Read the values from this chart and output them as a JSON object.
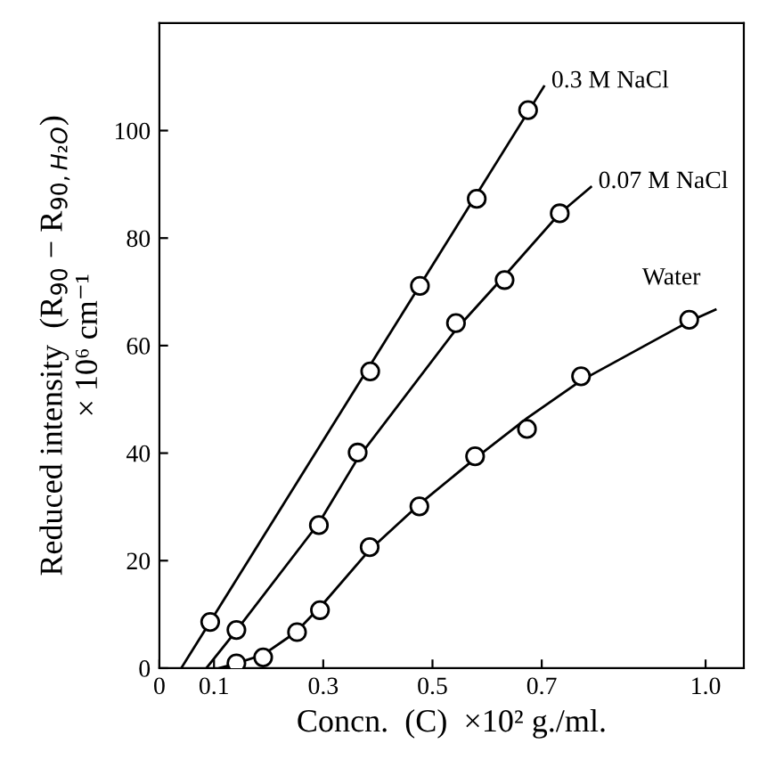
{
  "chart_data": {
    "type": "scatter",
    "xlabel": "Concn.  (C)  ×10² g./ml.",
    "ylabel": "Reduced intensity  (R$_{90}$ − R$_{90,H₂O}$)\n× 10⁶ cm⁻¹",
    "xlim": [
      0,
      1.07
    ],
    "ylim": [
      0,
      120
    ],
    "xticks": [
      0,
      0.1,
      0.3,
      0.5,
      0.7,
      {
        "value": 1.0,
        "label": "1.0"
      }
    ],
    "yticks": [
      0,
      20,
      40,
      60,
      80,
      100
    ],
    "grid": false,
    "legend": false,
    "series": [
      {
        "marker": "circle",
        "color": "#000000",
        "x": [
          0.093,
          0.386,
          0.477,
          0.581,
          0.675
        ],
        "values": [
          8.6,
          55.2,
          71.1,
          87.3,
          103.8
        ]
      },
      {
        "marker": "circle",
        "color": "#000000",
        "x": [
          0.141,
          0.292,
          0.363,
          0.543,
          0.632,
          0.733
        ],
        "values": [
          7.1,
          26.6,
          40.1,
          64.2,
          72.2,
          84.6
        ]
      },
      {
        "marker": "circle",
        "color": "#000000",
        "x": [
          0.141,
          0.19,
          0.252,
          0.294,
          0.385,
          0.476,
          0.578,
          0.673,
          0.772,
          0.97
        ],
        "values": [
          0.9,
          2.0,
          6.7,
          10.8,
          22.5,
          30.1,
          39.4,
          44.5,
          54.3,
          64.8
        ]
      },
      {
        "type": "line",
        "name": "0.3 M NaCl",
        "color": "#000000",
        "x": [
          0.04,
          0.704
        ],
        "values": [
          0,
          108.2
        ]
      },
      {
        "type": "line",
        "name": "0.07 M NaCl",
        "color": "#000000",
        "x": [
          0.086,
          0.141,
          0.292,
          0.363,
          0.543,
          0.632,
          0.733,
          0.79
        ],
        "values": [
          0,
          7,
          27,
          39,
          63,
          73,
          84.6,
          89.5
        ]
      },
      {
        "type": "line",
        "name": "Water",
        "color": "#000000",
        "x": [
          0.11,
          0.141,
          0.19,
          0.25,
          0.3,
          0.385,
          0.476,
          0.578,
          0.673,
          0.772,
          0.97,
          1.018
        ],
        "values": [
          0,
          0.9,
          2.5,
          6.7,
          12,
          22,
          30.5,
          39,
          46.5,
          53.5,
          64.5,
          66.7
        ]
      }
    ]
  }
}
